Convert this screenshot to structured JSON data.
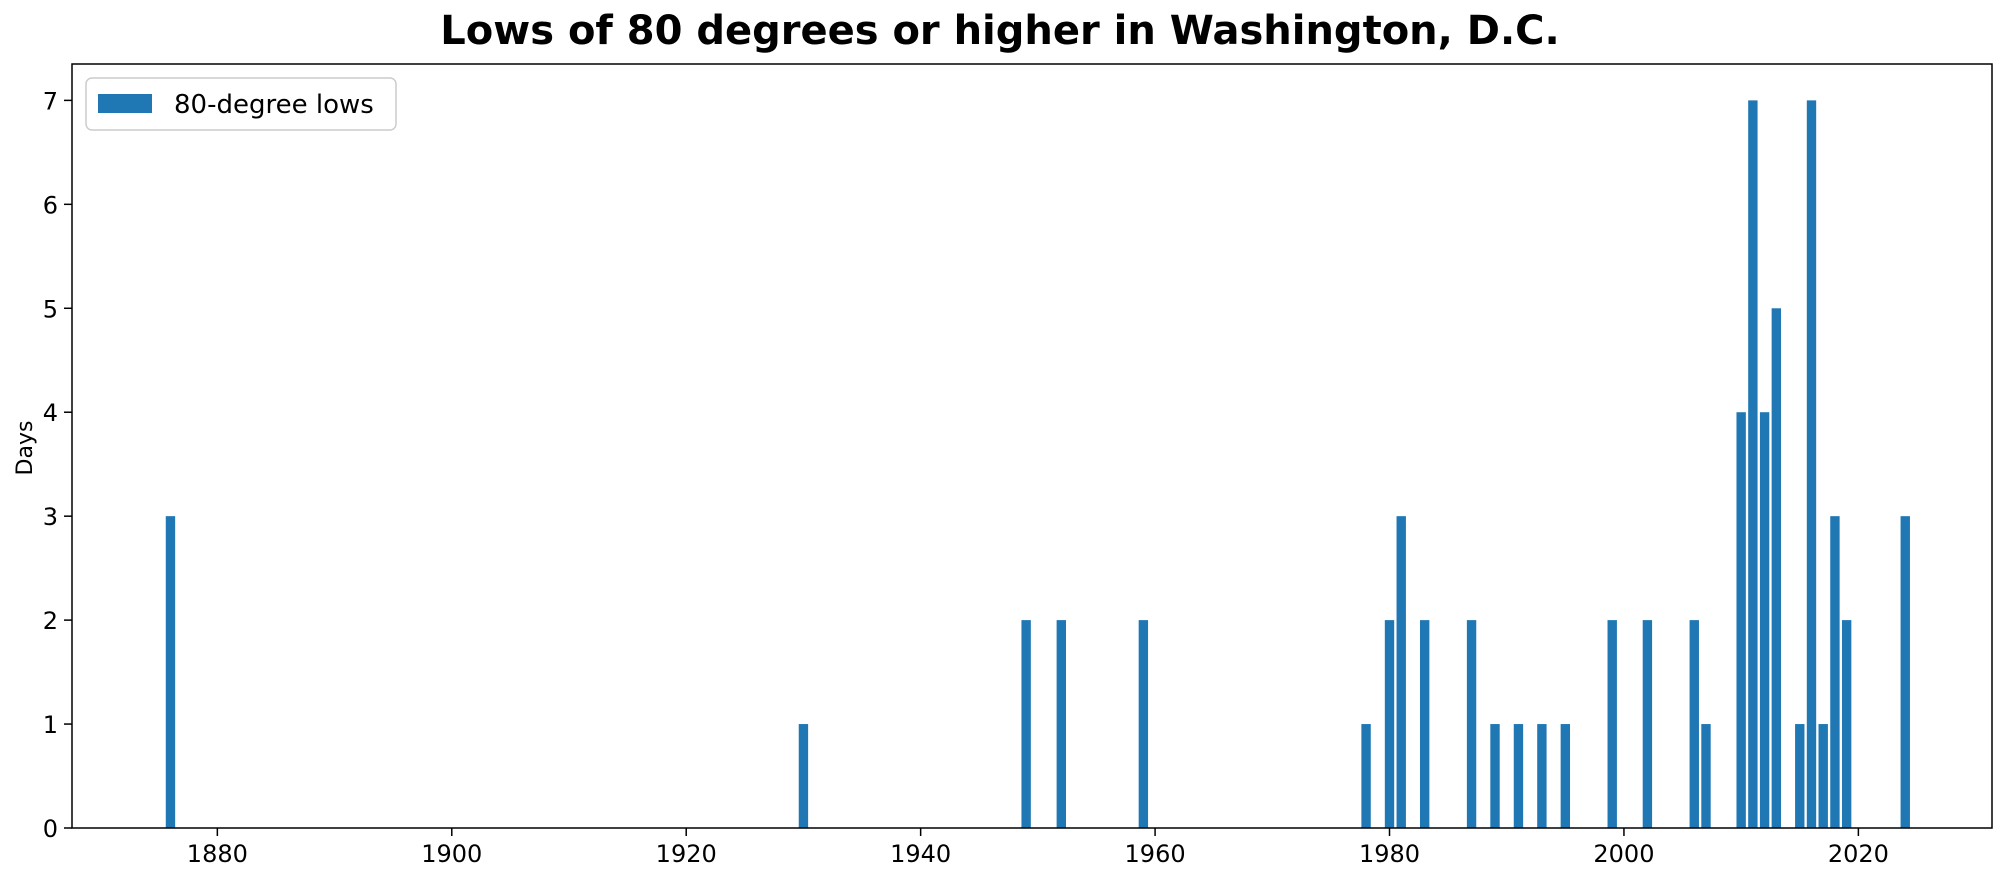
{
  "chart_data": {
    "type": "bar",
    "title": "Lows of 80 degrees or higher in Washington, D.C.",
    "xlabel": "",
    "ylabel": "Days",
    "xlim": [
      1867.6,
      2031.4
    ],
    "ylim": [
      0,
      7.35
    ],
    "xticks": [
      1880,
      1900,
      1920,
      1940,
      1960,
      1980,
      2000,
      2020
    ],
    "yticks": [
      0,
      1,
      2,
      3,
      4,
      5,
      6,
      7
    ],
    "grid": false,
    "legend_position": "top-left",
    "bar_width_years": 0.8,
    "series": [
      {
        "name": "80-degree lows",
        "color": "#1f77b4",
        "x": [
          1876,
          1930,
          1949,
          1952,
          1959,
          1978,
          1980,
          1981,
          1983,
          1987,
          1989,
          1991,
          1993,
          1995,
          1999,
          2002,
          2006,
          2007,
          2010,
          2011,
          2012,
          2013,
          2015,
          2016,
          2017,
          2018,
          2019,
          2024
        ],
        "values": [
          3,
          1,
          2,
          2,
          2,
          1,
          2,
          3,
          2,
          2,
          1,
          1,
          1,
          1,
          2,
          2,
          2,
          1,
          4,
          7,
          4,
          5,
          1,
          7,
          1,
          3,
          2,
          3
        ]
      }
    ]
  }
}
